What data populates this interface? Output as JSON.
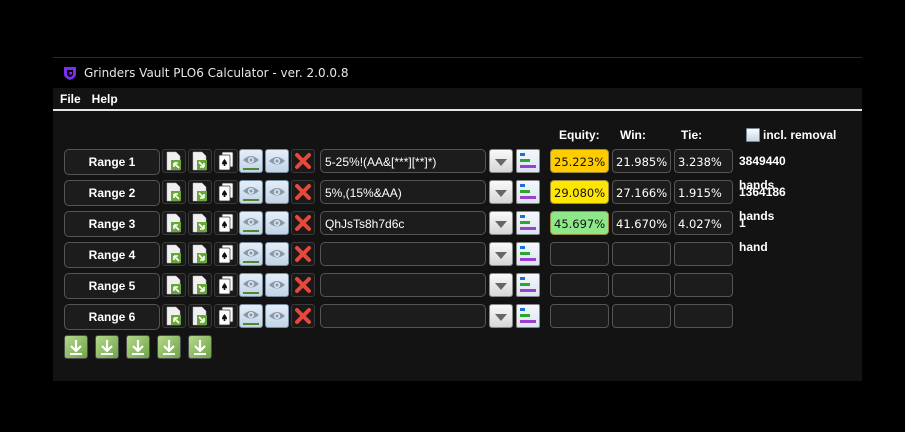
{
  "window": {
    "title": "Grinders Vault PLO6 Calculator - ver. 2.0.0.8",
    "logo_icon": "grinders-vault-shield-icon"
  },
  "menu": {
    "items": [
      "File",
      "Help"
    ]
  },
  "columns": {
    "equity": "Equity:",
    "win": "Win:",
    "tie": "Tie:",
    "incl_removal": {
      "label": "incl. removal",
      "checked": false
    }
  },
  "colors": {
    "equity_orange": "#ffcc00",
    "equity_yellow": "#ffe600",
    "equity_green": "#8ee88a",
    "accent_purple": "#7b2ff2"
  },
  "ranges": [
    {
      "label": "Range 1",
      "input": "5-25%!(AA&[***][**]*)",
      "equity": "25.223%",
      "win": "21.985%",
      "tie": "3.238%",
      "hands": "3849440 hands",
      "equity_color": "#ffcc00"
    },
    {
      "label": "Range 2",
      "input": "5%,(15%&AA)",
      "equity": "29.080%",
      "win": "27.166%",
      "tie": "1.915%",
      "hands": "1364186 hands",
      "equity_color": "#ffe600"
    },
    {
      "label": "Range 3",
      "input": "QhJsTs8h7d6c",
      "equity": "45.697%",
      "win": "41.670%",
      "tie": "4.027%",
      "hands": "1 hand",
      "equity_color": "#8ee88a"
    },
    {
      "label": "Range 4",
      "input": "",
      "equity": "",
      "win": "",
      "tie": "",
      "hands": "",
      "equity_color": ""
    },
    {
      "label": "Range 5",
      "input": "",
      "equity": "",
      "win": "",
      "tie": "",
      "hands": "",
      "equity_color": ""
    },
    {
      "label": "Range 6",
      "input": "",
      "equity": "",
      "win": "",
      "tie": "",
      "hands": "",
      "equity_color": ""
    }
  ],
  "row_icons": [
    "import-range-icon",
    "export-range-icon",
    "cards-icon",
    "view-range-icon",
    "view-icon",
    "clear-icon",
    "dropdown-icon",
    "range-chart-icon"
  ],
  "download_buttons": 5
}
